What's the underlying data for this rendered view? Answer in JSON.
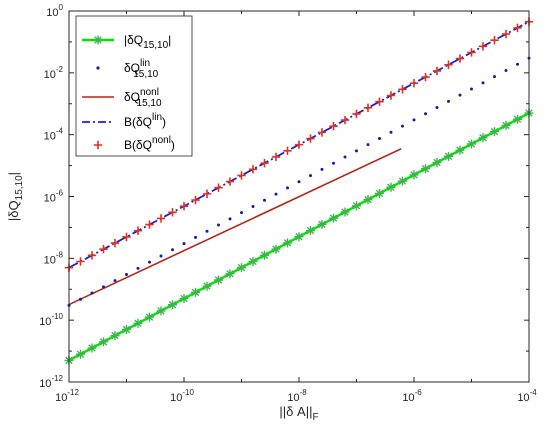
{
  "chart_data": {
    "type": "line",
    "xscale": "log",
    "yscale": "log",
    "xlim": [
      1e-12,
      0.0001
    ],
    "ylim": [
      1e-12,
      1
    ],
    "xlabel": {
      "main": "||δ A||",
      "sub": "F"
    },
    "ylabel": {
      "main": "|δQ",
      "sub": "15,10",
      "end": "|"
    },
    "xticks": [
      {
        "value": 1e-12,
        "base": "10",
        "exp": "-12"
      },
      {
        "value": 1e-10,
        "base": "10",
        "exp": "-10"
      },
      {
        "value": 1e-08,
        "base": "10",
        "exp": "-8"
      },
      {
        "value": 1e-06,
        "base": "10",
        "exp": "-6"
      },
      {
        "value": 0.0001,
        "base": "10",
        "exp": "-4"
      }
    ],
    "yticks": [
      {
        "value": 1e-12,
        "base": "10",
        "exp": "-12"
      },
      {
        "value": 1e-10,
        "base": "10",
        "exp": "-10"
      },
      {
        "value": 1e-08,
        "base": "10",
        "exp": "-8"
      },
      {
        "value": 1e-06,
        "base": "10",
        "exp": "-6"
      },
      {
        "value": 0.0001,
        "base": "10",
        "exp": "-4"
      },
      {
        "value": 0.01,
        "base": "10",
        "exp": "-2"
      },
      {
        "value": 1,
        "base": "10",
        "exp": "0"
      }
    ],
    "grid": false,
    "legend_position": "top-left",
    "series": [
      {
        "name": {
          "main": "|δQ",
          "sub": "15,10",
          "sup": "",
          "end": "|"
        },
        "style": "line+asterisk",
        "color": "#00e600",
        "marker_color": "#3cb44b",
        "x_start": 1e-12,
        "x_end": 0.0001,
        "y_start": 5e-12,
        "y_end": 0.0005,
        "n_markers": 41
      },
      {
        "name": {
          "main": "δQ",
          "sub": "15,10",
          "sup": "lin",
          "end": ""
        },
        "style": "dots",
        "color": "#1a1aa8",
        "x_start": 1e-12,
        "x_end": 0.0001,
        "y_start": 3e-10,
        "y_end": 0.03,
        "n_markers": 41
      },
      {
        "name": {
          "main": "δQ",
          "sub": "15,10",
          "sup": "nonl",
          "end": ""
        },
        "style": "line",
        "color": "#b5271c",
        "x_start": 1e-12,
        "x_end": 6e-07,
        "y_start": 3.2e-10,
        "y_end": 3.5e-05
      },
      {
        "name": {
          "main": "B(δQ",
          "sub": "",
          "sup": "lin",
          "end": ")"
        },
        "style": "dashdot",
        "color": "#1f1fd6",
        "x_start": 1e-12,
        "x_end": 0.0001,
        "y_start": 5e-09,
        "y_end": 0.45
      },
      {
        "name": {
          "main": "B(δQ",
          "sub": "",
          "sup": "nonl",
          "end": ")"
        },
        "style": "plus",
        "color": "#e0301e",
        "x_start": 1e-12,
        "x_end": 0.0001,
        "y_start": 5e-09,
        "y_end": 0.45,
        "n_markers": 41
      }
    ]
  }
}
